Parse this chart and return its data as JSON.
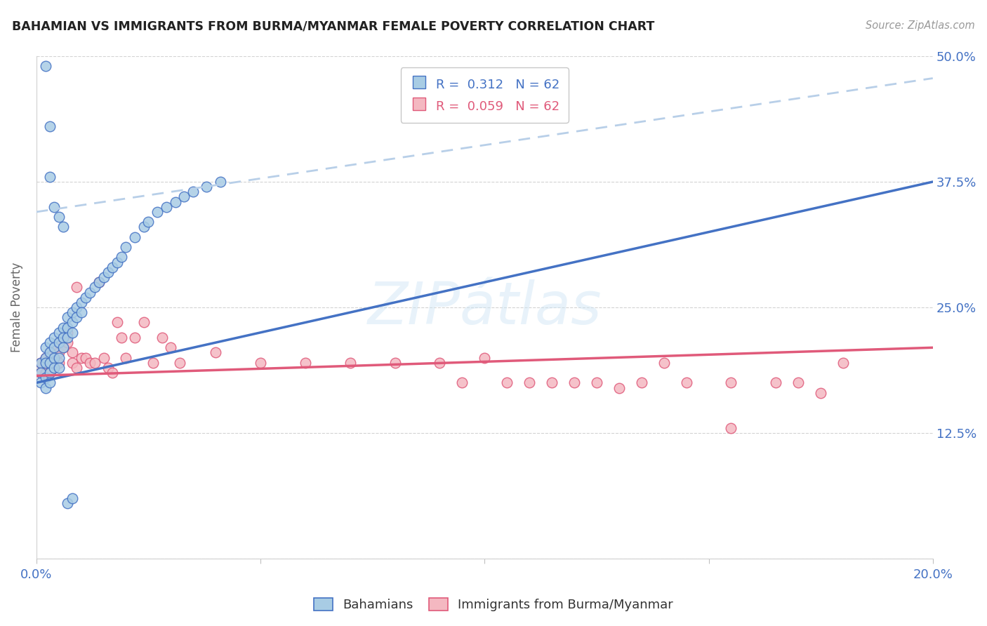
{
  "title": "BAHAMIAN VS IMMIGRANTS FROM BURMA/MYANMAR FEMALE POVERTY CORRELATION CHART",
  "source": "Source: ZipAtlas.com",
  "ylabel": "Female Poverty",
  "y_ticks": [
    0.0,
    0.125,
    0.25,
    0.375,
    0.5
  ],
  "y_tick_labels": [
    "",
    "12.5%",
    "25.0%",
    "37.5%",
    "50.0%"
  ],
  "x_range": [
    0.0,
    0.2
  ],
  "y_range": [
    0.0,
    0.5
  ],
  "series1_color": "#a8cce4",
  "series2_color": "#f4b8c1",
  "line1_color": "#4472c4",
  "line2_color": "#e05a7a",
  "dashed_line_color": "#b8cfe8",
  "watermark": "ZIPátlas",
  "bah_line_x0": 0.0,
  "bah_line_x1": 0.2,
  "bah_line_y0": 0.175,
  "bah_line_y1": 0.375,
  "bur_line_x0": 0.0,
  "bur_line_x1": 0.2,
  "bur_line_y0": 0.182,
  "bur_line_y1": 0.21,
  "dash_line_x0": 0.0,
  "dash_line_x1": 0.2,
  "dash_line_y0": 0.345,
  "dash_line_y1": 0.478,
  "bah_x": [
    0.001,
    0.001,
    0.001,
    0.002,
    0.002,
    0.002,
    0.002,
    0.002,
    0.003,
    0.003,
    0.003,
    0.003,
    0.003,
    0.004,
    0.004,
    0.004,
    0.004,
    0.005,
    0.005,
    0.005,
    0.005,
    0.006,
    0.006,
    0.006,
    0.007,
    0.007,
    0.007,
    0.008,
    0.008,
    0.008,
    0.009,
    0.009,
    0.01,
    0.01,
    0.011,
    0.012,
    0.013,
    0.014,
    0.015,
    0.016,
    0.017,
    0.018,
    0.019,
    0.02,
    0.022,
    0.024,
    0.025,
    0.027,
    0.029,
    0.031,
    0.033,
    0.035,
    0.038,
    0.041,
    0.002,
    0.003,
    0.003,
    0.004,
    0.005,
    0.006,
    0.007,
    0.008
  ],
  "bah_y": [
    0.195,
    0.185,
    0.175,
    0.2,
    0.21,
    0.195,
    0.18,
    0.17,
    0.215,
    0.205,
    0.195,
    0.185,
    0.175,
    0.22,
    0.21,
    0.2,
    0.19,
    0.225,
    0.215,
    0.2,
    0.19,
    0.23,
    0.22,
    0.21,
    0.24,
    0.23,
    0.22,
    0.245,
    0.235,
    0.225,
    0.25,
    0.24,
    0.255,
    0.245,
    0.26,
    0.265,
    0.27,
    0.275,
    0.28,
    0.285,
    0.29,
    0.295,
    0.3,
    0.31,
    0.32,
    0.33,
    0.335,
    0.345,
    0.35,
    0.355,
    0.36,
    0.365,
    0.37,
    0.375,
    0.49,
    0.43,
    0.38,
    0.35,
    0.34,
    0.33,
    0.055,
    0.06
  ],
  "bur_x": [
    0.001,
    0.001,
    0.002,
    0.002,
    0.002,
    0.003,
    0.003,
    0.003,
    0.004,
    0.004,
    0.004,
    0.005,
    0.005,
    0.005,
    0.006,
    0.006,
    0.007,
    0.007,
    0.008,
    0.008,
    0.009,
    0.009,
    0.01,
    0.011,
    0.012,
    0.013,
    0.014,
    0.015,
    0.016,
    0.017,
    0.018,
    0.019,
    0.02,
    0.022,
    0.024,
    0.026,
    0.028,
    0.03,
    0.032,
    0.04,
    0.05,
    0.06,
    0.07,
    0.08,
    0.09,
    0.1,
    0.11,
    0.12,
    0.13,
    0.14,
    0.155,
    0.165,
    0.17,
    0.175,
    0.18,
    0.095,
    0.105,
    0.115,
    0.125,
    0.135,
    0.145,
    0.155
  ],
  "bur_y": [
    0.195,
    0.185,
    0.2,
    0.195,
    0.185,
    0.205,
    0.195,
    0.185,
    0.21,
    0.2,
    0.19,
    0.215,
    0.205,
    0.195,
    0.22,
    0.21,
    0.225,
    0.215,
    0.205,
    0.195,
    0.27,
    0.19,
    0.2,
    0.2,
    0.195,
    0.195,
    0.275,
    0.2,
    0.19,
    0.185,
    0.235,
    0.22,
    0.2,
    0.22,
    0.235,
    0.195,
    0.22,
    0.21,
    0.195,
    0.205,
    0.195,
    0.195,
    0.195,
    0.195,
    0.195,
    0.2,
    0.175,
    0.175,
    0.17,
    0.195,
    0.13,
    0.175,
    0.175,
    0.165,
    0.195,
    0.175,
    0.175,
    0.175,
    0.175,
    0.175,
    0.175,
    0.175
  ]
}
